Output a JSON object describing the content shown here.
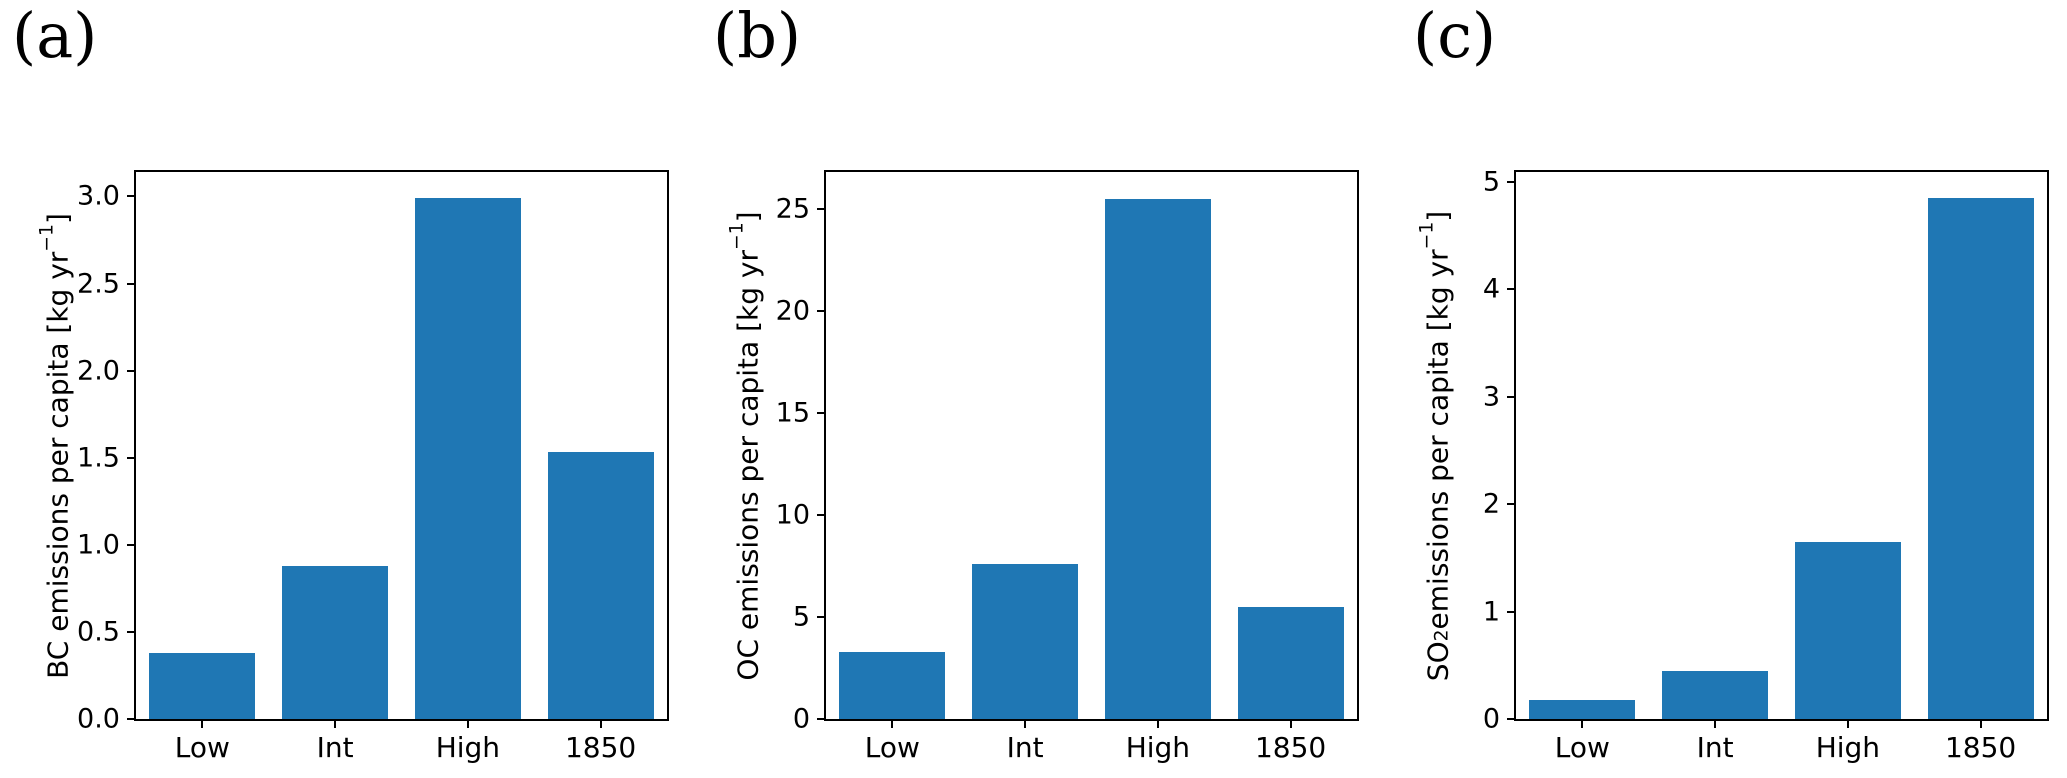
{
  "figure": {
    "background": "#ffffff",
    "bar_color": "#1f77b4",
    "axis_color": "#000000",
    "text_color": "#000000",
    "panel_labels": [
      "(a)",
      "(b)",
      "(c)"
    ]
  },
  "chart_data": [
    {
      "type": "bar",
      "panel_label": "(a)",
      "title": "",
      "xlabel": "",
      "ylabel": "BC emissions per capita [kg yr⁻¹]",
      "ylabel_segments": [
        {
          "text": "BC emissions per capita [kg yr"
        },
        {
          "text": "−1",
          "style": "sup"
        },
        {
          "text": "]"
        }
      ],
      "categories": [
        "Low",
        "Int",
        "High",
        "1850"
      ],
      "values": [
        0.38,
        0.88,
        2.99,
        1.53
      ],
      "yticks": [
        {
          "label": "0.0",
          "value": 0.0
        },
        {
          "label": "0.5",
          "value": 0.5
        },
        {
          "label": "1.0",
          "value": 1.0
        },
        {
          "label": "1.5",
          "value": 1.5
        },
        {
          "label": "2.0",
          "value": 2.0
        },
        {
          "label": "2.5",
          "value": 2.5
        },
        {
          "label": "3.0",
          "value": 3.0
        }
      ],
      "ylim": [
        0,
        3.14
      ],
      "bar_width_frac": 0.8,
      "grid": false,
      "legend": null
    },
    {
      "type": "bar",
      "panel_label": "(b)",
      "title": "",
      "xlabel": "",
      "ylabel": "OC emissions per capita [kg yr⁻¹]",
      "ylabel_segments": [
        {
          "text": "OC emissions per capita [kg yr"
        },
        {
          "text": "−1",
          "style": "sup"
        },
        {
          "text": "]"
        }
      ],
      "categories": [
        "Low",
        "Int",
        "High",
        "1850"
      ],
      "values": [
        3.3,
        7.6,
        25.5,
        5.5
      ],
      "yticks": [
        {
          "label": "0",
          "value": 0
        },
        {
          "label": "5",
          "value": 5
        },
        {
          "label": "10",
          "value": 10
        },
        {
          "label": "15",
          "value": 15
        },
        {
          "label": "20",
          "value": 20
        },
        {
          "label": "25",
          "value": 25
        }
      ],
      "ylim": [
        0,
        26.8
      ],
      "bar_width_frac": 0.8,
      "grid": false,
      "legend": null
    },
    {
      "type": "bar",
      "panel_label": "(c)",
      "title": "",
      "xlabel": "",
      "ylabel": "SO₂ emissions per capita [kg yr⁻¹]",
      "ylabel_segments": [
        {
          "text": "SO"
        },
        {
          "text": "2",
          "style": "sub"
        },
        {
          "text": " emissions per capita [kg yr"
        },
        {
          "text": "−1",
          "style": "sup"
        },
        {
          "text": "]"
        }
      ],
      "categories": [
        "Low",
        "Int",
        "High",
        "1850"
      ],
      "values": [
        0.18,
        0.45,
        1.65,
        4.85
      ],
      "yticks": [
        {
          "label": "0",
          "value": 0
        },
        {
          "label": "1",
          "value": 1
        },
        {
          "label": "2",
          "value": 2
        },
        {
          "label": "3",
          "value": 3
        },
        {
          "label": "4",
          "value": 4
        },
        {
          "label": "5",
          "value": 5
        }
      ],
      "ylim": [
        0,
        5.09
      ],
      "bar_width_frac": 0.8,
      "grid": false,
      "legend": null
    }
  ]
}
